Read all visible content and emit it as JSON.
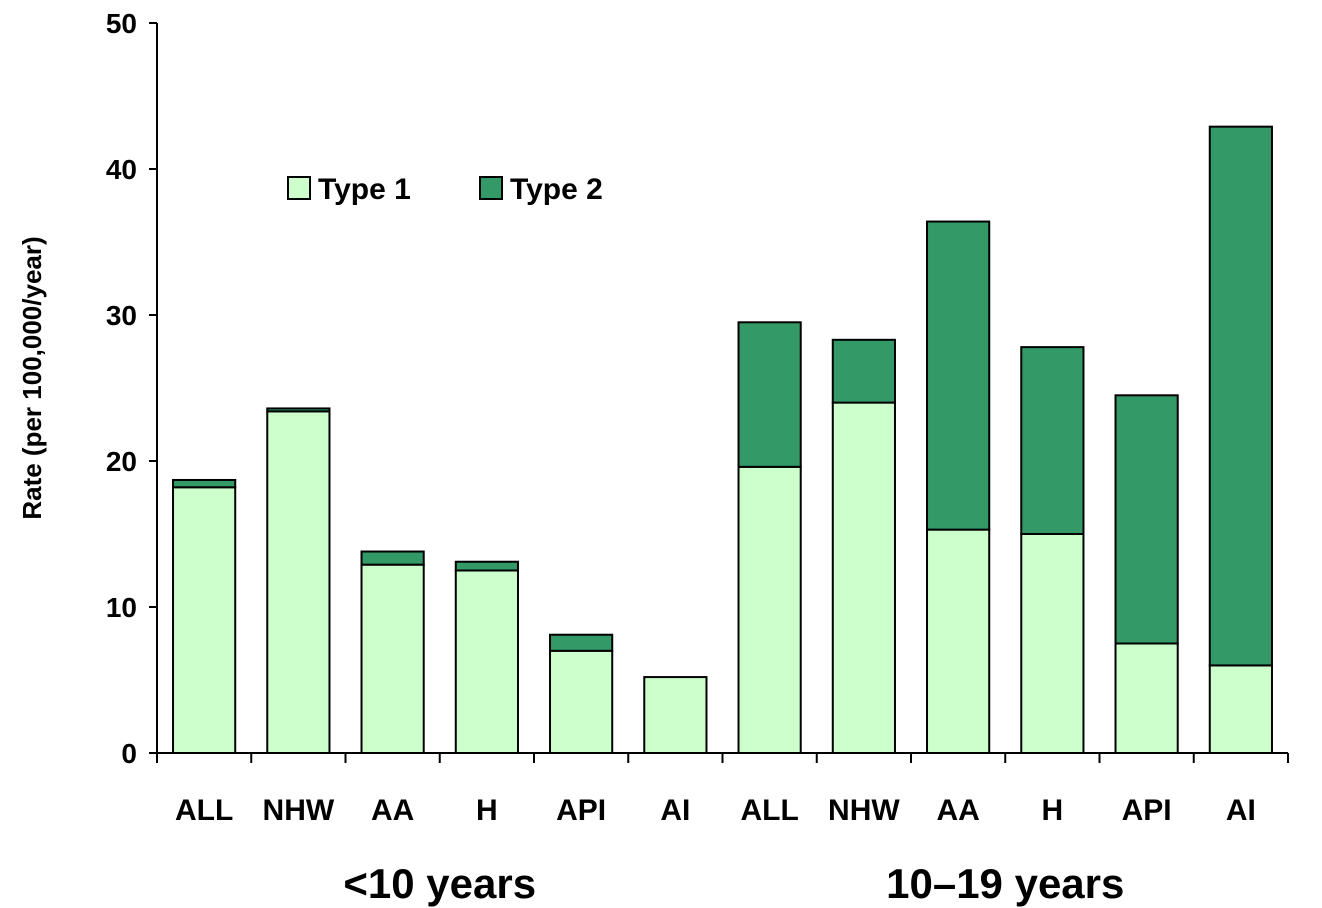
{
  "chart_data": {
    "type": "bar",
    "stacked": true,
    "ylabel": "Rate (per 100,000/year)",
    "ylim": [
      0,
      50
    ],
    "yticks": [
      0,
      10,
      20,
      30,
      40,
      50
    ],
    "categories": [
      "ALL",
      "NHW",
      "AA",
      "H",
      "API",
      "AI",
      "ALL",
      "NHW",
      "AA",
      "H",
      "API",
      "AI"
    ],
    "groups": [
      {
        "label": "<10 years",
        "count": 6
      },
      {
        "label": "10–19 years",
        "count": 6
      }
    ],
    "legend_position": "top-left",
    "series": [
      {
        "name": "Type 1",
        "color": "#ccffcc",
        "values": [
          18.2,
          23.4,
          12.9,
          12.5,
          7.0,
          5.2,
          19.6,
          24.0,
          15.3,
          15.0,
          7.5,
          6.0
        ]
      },
      {
        "name": "Type 2",
        "color": "#339966",
        "values": [
          0.5,
          0.2,
          0.9,
          0.6,
          1.1,
          0.0,
          9.9,
          4.3,
          21.1,
          12.8,
          17.0,
          36.9
        ]
      }
    ]
  }
}
